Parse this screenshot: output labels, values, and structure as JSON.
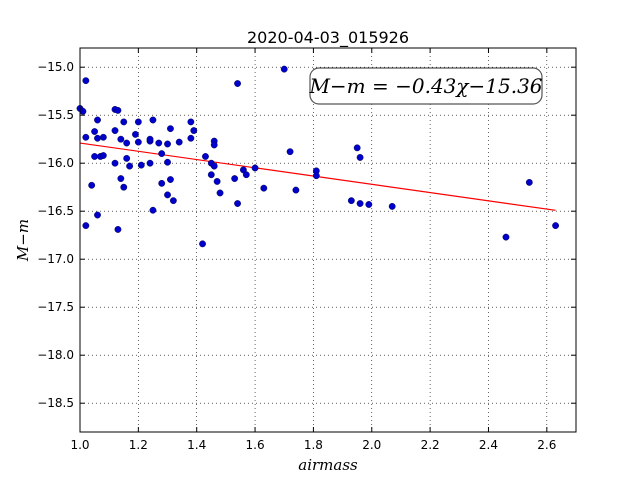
{
  "chart_data": {
    "type": "scatter",
    "title": "2020-04-03_015926",
    "xlabel": "airmass",
    "ylabel": "M−m",
    "xlim": [
      1.0,
      2.7
    ],
    "ylim": [
      -18.8,
      -14.8
    ],
    "xticks": [
      1.0,
      1.2,
      1.4,
      1.6,
      1.8,
      2.0,
      2.2,
      2.4,
      2.6
    ],
    "xtick_labels": [
      "1.0",
      "1.2",
      "1.4",
      "1.6",
      "1.8",
      "2.0",
      "2.2",
      "2.4",
      "2.6"
    ],
    "yticks": [
      -15.0,
      -15.5,
      -16.0,
      -16.5,
      -17.0,
      -17.5,
      -18.0,
      -18.5
    ],
    "ytick_labels": [
      "−15.0",
      "−15.5",
      "−16.0",
      "−16.5",
      "−17.0",
      "−17.5",
      "−18.0",
      "−18.5"
    ],
    "grid": true,
    "grid_style": "dotted",
    "annotation": "M−m = −0.43χ−15.36",
    "annotation_position": "top-right",
    "fit": {
      "slope": -0.43,
      "intercept": -15.36,
      "x_range": [
        1.0,
        2.63
      ],
      "color": "#ff0000"
    },
    "point_color": "#0000cc",
    "series": [
      {
        "points": [
          [
            1.0,
            -15.43
          ],
          [
            1.01,
            -15.46
          ],
          [
            1.02,
            -15.14
          ],
          [
            1.02,
            -16.65
          ],
          [
            1.02,
            -15.73
          ],
          [
            1.04,
            -16.23
          ],
          [
            1.05,
            -15.67
          ],
          [
            1.05,
            -15.93
          ],
          [
            1.06,
            -15.55
          ],
          [
            1.06,
            -15.74
          ],
          [
            1.06,
            -16.54
          ],
          [
            1.07,
            -15.93
          ],
          [
            1.08,
            -15.73
          ],
          [
            1.08,
            -15.92
          ],
          [
            1.12,
            -15.44
          ],
          [
            1.12,
            -15.66
          ],
          [
            1.12,
            -16.0
          ],
          [
            1.13,
            -15.45
          ],
          [
            1.13,
            -16.69
          ],
          [
            1.14,
            -15.75
          ],
          [
            1.14,
            -16.16
          ],
          [
            1.15,
            -16.25
          ],
          [
            1.15,
            -15.57
          ],
          [
            1.16,
            -15.79
          ],
          [
            1.16,
            -15.95
          ],
          [
            1.17,
            -16.03
          ],
          [
            1.19,
            -15.7
          ],
          [
            1.2,
            -15.57
          ],
          [
            1.2,
            -15.78
          ],
          [
            1.21,
            -16.02
          ],
          [
            1.24,
            -15.77
          ],
          [
            1.24,
            -15.75
          ],
          [
            1.24,
            -16.0
          ],
          [
            1.25,
            -16.49
          ],
          [
            1.25,
            -15.55
          ],
          [
            1.27,
            -15.79
          ],
          [
            1.28,
            -15.9
          ],
          [
            1.28,
            -16.21
          ],
          [
            1.3,
            -15.8
          ],
          [
            1.3,
            -15.99
          ],
          [
            1.3,
            -16.33
          ],
          [
            1.31,
            -16.17
          ],
          [
            1.31,
            -15.64
          ],
          [
            1.32,
            -16.39
          ],
          [
            1.34,
            -15.78
          ],
          [
            1.38,
            -15.57
          ],
          [
            1.38,
            -15.74
          ],
          [
            1.39,
            -15.66
          ],
          [
            1.42,
            -16.84
          ],
          [
            1.43,
            -15.93
          ],
          [
            1.45,
            -16.0
          ],
          [
            1.45,
            -16.12
          ],
          [
            1.46,
            -15.77
          ],
          [
            1.46,
            -15.81
          ],
          [
            1.46,
            -16.03
          ],
          [
            1.47,
            -16.19
          ],
          [
            1.48,
            -16.31
          ],
          [
            1.53,
            -16.16
          ],
          [
            1.54,
            -15.17
          ],
          [
            1.54,
            -16.42
          ],
          [
            1.56,
            -16.07
          ],
          [
            1.57,
            -16.12
          ],
          [
            1.6,
            -16.05
          ],
          [
            1.63,
            -16.26
          ],
          [
            1.7,
            -15.02
          ],
          [
            1.72,
            -15.88
          ],
          [
            1.74,
            -16.28
          ],
          [
            1.81,
            -16.08
          ],
          [
            1.81,
            -16.13
          ],
          [
            1.93,
            -16.39
          ],
          [
            1.95,
            -15.84
          ],
          [
            1.96,
            -15.94
          ],
          [
            1.96,
            -16.42
          ],
          [
            1.99,
            -16.43
          ],
          [
            2.07,
            -16.45
          ],
          [
            2.46,
            -16.77
          ],
          [
            2.54,
            -16.2
          ],
          [
            2.63,
            -16.65
          ]
        ]
      }
    ]
  }
}
